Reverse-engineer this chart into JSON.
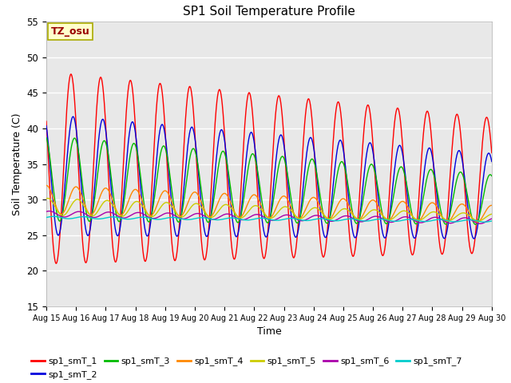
{
  "title": "SP1 Soil Temperature Profile",
  "xlabel": "Time",
  "ylabel": "Soil Temperature (C)",
  "ylim": [
    15,
    55
  ],
  "n_days": 15,
  "pts_per_day": 144,
  "x_tick_labels": [
    "Aug 15",
    "Aug 16",
    "Aug 17",
    "Aug 18",
    "Aug 19",
    "Aug 20",
    "Aug 21",
    "Aug 22",
    "Aug 23",
    "Aug 24",
    "Aug 25",
    "Aug 26",
    "Aug 27",
    "Aug 28",
    "Aug 29",
    "Aug 30"
  ],
  "annotation_text": "TZ_osu",
  "annotation_bg": "#ffffcc",
  "annotation_border": "#aaaa00",
  "annotation_text_color": "#990000",
  "series_colors": [
    "#ff0000",
    "#0000dd",
    "#00bb00",
    "#ff8800",
    "#cccc00",
    "#aa00aa",
    "#00cccc"
  ],
  "series_labels": [
    "sp1_smT_1",
    "sp1_smT_2",
    "sp1_smT_3",
    "sp1_smT_4",
    "sp1_smT_5",
    "sp1_smT_6",
    "sp1_smT_7"
  ],
  "bg_color": "#e8e8e8",
  "grid_color": "#ffffff",
  "figsize": [
    6.4,
    4.8
  ],
  "dpi": 100
}
